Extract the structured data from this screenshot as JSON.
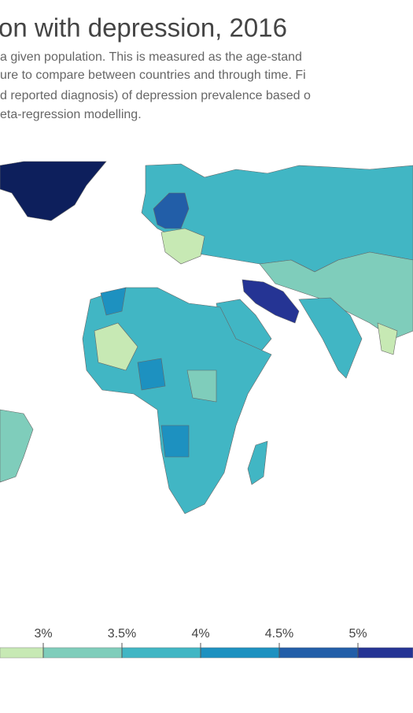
{
  "header": {
    "title": "on with depression, 2016",
    "subtitle": [
      "a given population. This is measured as the age-stand",
      "ure to compare between countries and through time. Fi",
      "d reported diagnosis) of depression prevalence based o",
      "eta-regression modelling."
    ]
  },
  "legend": {
    "ticks": [
      {
        "value": 3,
        "label": "3%"
      },
      {
        "value": 3.5,
        "label": "3.5%"
      },
      {
        "value": 4,
        "label": "4%"
      },
      {
        "value": 4.5,
        "label": "4.5%"
      },
      {
        "value": 5,
        "label": "5%"
      }
    ],
    "colors": [
      "#c7e9b4",
      "#7fcdbb",
      "#41b6c4",
      "#1d91c0",
      "#225ea8",
      "#253494"
    ]
  }
}
